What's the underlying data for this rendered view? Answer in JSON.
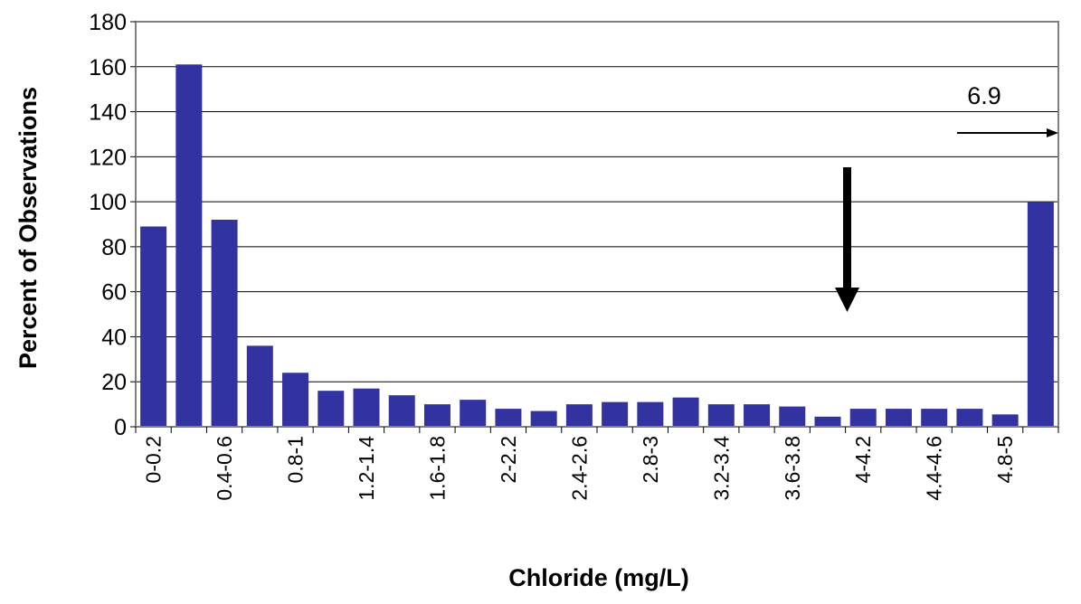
{
  "chart_data": {
    "type": "bar",
    "xlabel": "Chloride (mg/L)",
    "ylabel": "Percent of Observations",
    "ylim": [
      0,
      180
    ],
    "ytick_step": 20,
    "grid": true,
    "bar_color": "#3232a0",
    "categories": [
      "0-0.2",
      "",
      "0.4-0.6",
      "",
      "0.8-1",
      "",
      "1.2-1.4",
      "",
      "1.6-1.8",
      "",
      "2-2.2",
      "",
      "2.4-2.6",
      "",
      "2.8-3",
      "",
      "3.2-3.4",
      "",
      "3.6-3.8",
      "",
      "4-4.2",
      "",
      "4.4-4.6",
      "",
      "4.8-5",
      ""
    ],
    "values": [
      89,
      161,
      92,
      36,
      24,
      16,
      17,
      14,
      10,
      12,
      8,
      7,
      10,
      11,
      11,
      13,
      10,
      10,
      9,
      4.5,
      8,
      8,
      8,
      8,
      5.5,
      100
    ],
    "annotations": [
      {
        "text": "6.9",
        "type": "right-arrow"
      },
      {
        "text": "",
        "type": "down-arrow"
      }
    ]
  }
}
